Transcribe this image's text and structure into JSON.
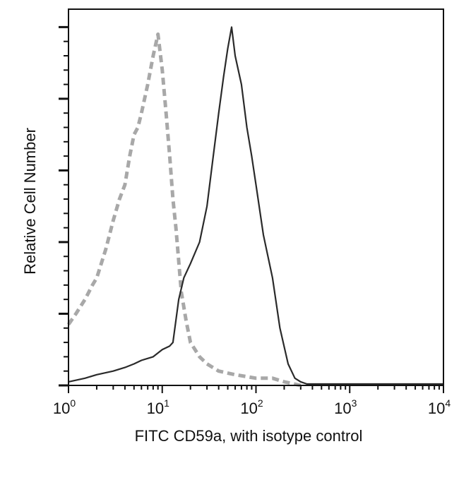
{
  "chart_data": {
    "type": "line",
    "title": "",
    "xlabel": "FITC CD59a, with isotype control",
    "ylabel": "Relative Cell Number",
    "xscale": "log",
    "xlim": [
      1,
      10000
    ],
    "ylim": [
      0,
      5.25
    ],
    "x_tick_labels": [
      {
        "base": "10",
        "exp": "0"
      },
      {
        "base": "10",
        "exp": "1"
      },
      {
        "base": "10",
        "exp": "2"
      },
      {
        "base": "10",
        "exp": "3"
      },
      {
        "base": "10",
        "exp": "4"
      }
    ],
    "y_tick_labels": "none",
    "grid": false,
    "legend": "none",
    "series": [
      {
        "role": "isotype control",
        "color": "#a8a8a8",
        "style": "dashed",
        "x": [
          1,
          1.2,
          1.5,
          1.8,
          2,
          2.5,
          3,
          3.5,
          4,
          4.5,
          5,
          5.5,
          6,
          7,
          8,
          9,
          10,
          11,
          12,
          13,
          14,
          16,
          18,
          20,
          25,
          30,
          40,
          60,
          100,
          150,
          200,
          300
        ],
        "y": [
          0.85,
          1.0,
          1.2,
          1.4,
          1.5,
          1.9,
          2.3,
          2.6,
          2.8,
          3.2,
          3.5,
          3.6,
          3.8,
          4.2,
          4.6,
          4.9,
          4.4,
          3.8,
          3.2,
          2.6,
          2.2,
          1.3,
          0.9,
          0.6,
          0.4,
          0.3,
          0.2,
          0.15,
          0.1,
          0.1,
          0.05,
          0
        ]
      },
      {
        "role": "FITC CD59a",
        "color": "#2a2a2a",
        "style": "solid",
        "x": [
          1,
          1.5,
          2,
          3,
          4,
          5,
          6,
          8,
          10,
          12,
          13,
          15,
          17,
          20,
          25,
          30,
          35,
          40,
          45,
          50,
          55,
          60,
          70,
          80,
          90,
          100,
          120,
          150,
          180,
          220,
          260,
          300,
          350,
          500,
          1000,
          3000,
          10000
        ],
        "y": [
          0.05,
          0.1,
          0.15,
          0.2,
          0.25,
          0.3,
          0.35,
          0.4,
          0.5,
          0.55,
          0.6,
          1.2,
          1.5,
          1.7,
          2.0,
          2.5,
          3.2,
          3.8,
          4.3,
          4.7,
          5.0,
          4.6,
          4.2,
          3.6,
          3.2,
          2.8,
          2.1,
          1.5,
          0.8,
          0.3,
          0.1,
          0.05,
          0.02,
          0.02,
          0.02,
          0.02,
          0.02
        ]
      }
    ]
  }
}
